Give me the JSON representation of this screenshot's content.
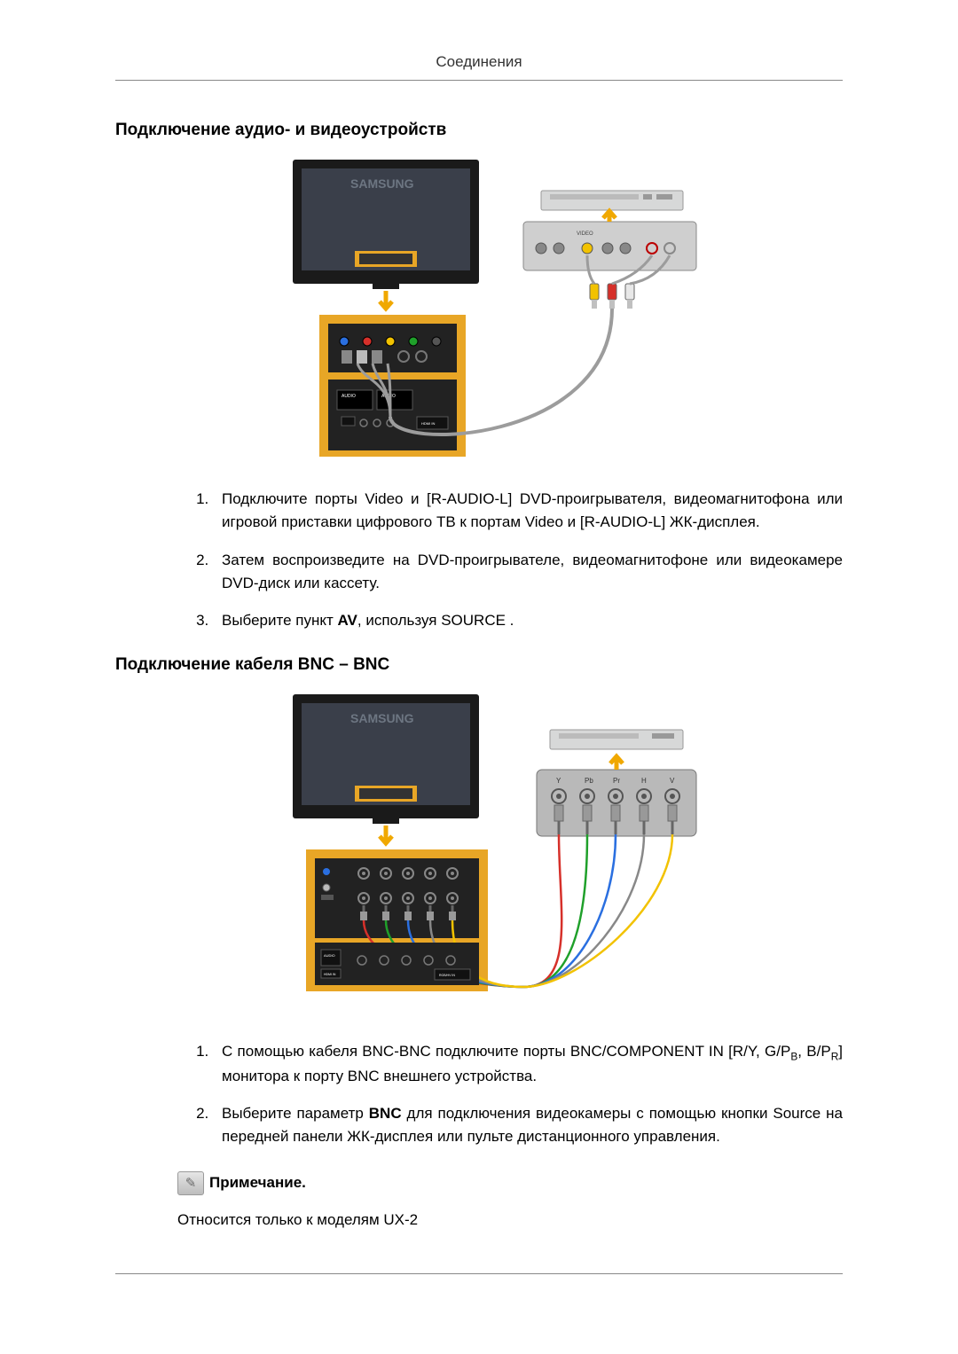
{
  "header": {
    "title": "Соединения"
  },
  "section1": {
    "heading": "Подключение аудио- и видеоустройств",
    "items": [
      {
        "text": "Подключите порты Video и [R-AUDIO-L] DVD-проигрывателя, видеомагнитофона или игровой приставки цифрового ТВ к портам Video и [R-AUDIO-L] ЖК-дисплея."
      },
      {
        "text": "Затем воспроизведите на DVD-проигрывателе, видеомагнитофоне или видеокамере DVD-диск или кассету."
      },
      {
        "prefix": "Выберите пункт ",
        "bold": "AV",
        "suffix": ", используя SOURCE ."
      }
    ]
  },
  "section2": {
    "heading": "Подключение кабеля BNC – BNC",
    "items": [
      {
        "prefix": "С помощью кабеля BNC-BNC подключите порты BNC/COMPONENT IN [R/Y, G/P",
        "sub1": "B",
        "mid": ", B/P",
        "sub2": "R",
        "suffix": "] монитора к порту BNC внешнего устройства."
      },
      {
        "prefix": "Выберите параметр ",
        "bold": "BNC",
        "suffix": " для подключения видеокамеры с помощью кнопки Source на передней панели ЖК-дисплея или пульте дистанционного управления."
      }
    ]
  },
  "note": {
    "label": "Примечание.",
    "body": "Относится только к моделям UX-2"
  },
  "diagram1": {
    "type": "connection-diagram",
    "tv_bezel": "#1a1a1a",
    "tv_screen": "#3a3f4a",
    "panel_bg": "#e8a626",
    "board_bg": "#222222",
    "cable_gray": "#9c9c9c",
    "device_bg": "#d7d8d8",
    "device_panel": "#cfcfcf",
    "rca_yellow": "#f2c200",
    "rca_red": "#d6302a",
    "rca_white": "#e8e8e8",
    "port_colors": [
      "#2a6fe0",
      "#d6302a",
      "#f2c200",
      "#1fa02a",
      "#555555"
    ],
    "arrow_color": "#f0a800",
    "brand": "SAMSUNG"
  },
  "diagram2": {
    "type": "connection-diagram",
    "tv_bezel": "#1a1a1a",
    "tv_screen": "#3a3f4a",
    "panel_bg": "#e8a626",
    "board_bg": "#222222",
    "device_bg": "#d7d8d8",
    "device_panel": "#b9b9b9",
    "bnc_colors": [
      "#d6302a",
      "#1fa02a",
      "#2a6fe0",
      "#888888",
      "#f2c200"
    ],
    "arrow_color": "#f0a800",
    "brand": "SAMSUNG"
  }
}
